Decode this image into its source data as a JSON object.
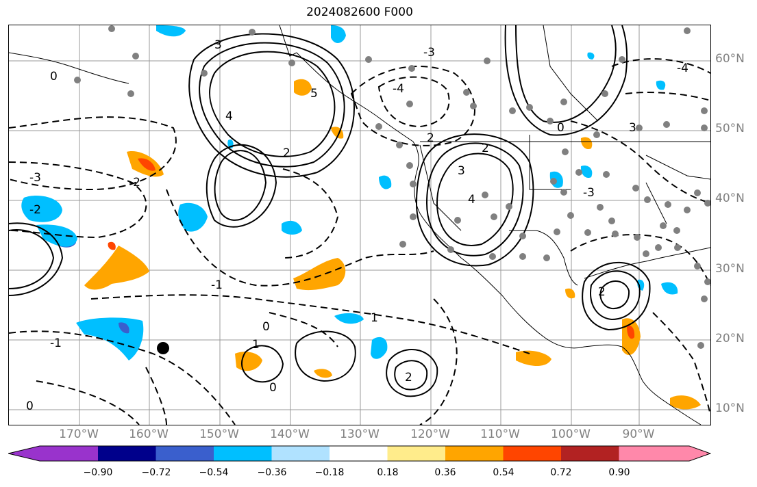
{
  "title": "2024082600 F000",
  "lat_labels": [
    "60°N",
    "50°N",
    "40°N",
    "30°N",
    "20°N",
    "10°N"
  ],
  "lon_labels": [
    "170°W",
    "160°W",
    "150°W",
    "140°W",
    "130°W",
    "120°W",
    "110°W",
    "100°W",
    "90°W"
  ],
  "colorbar": {
    "colors": [
      "#9933cc",
      "#00008b",
      "#3a5fcd",
      "#00bfff",
      "#b0e2ff",
      "#ffffff",
      "#ffec8b",
      "#ffa500",
      "#ff4500",
      "#b22222",
      "#ff88aa"
    ],
    "tick_labels": [
      "−0.90",
      "−0.72",
      "−0.54",
      "−0.36",
      "−0.18",
      "0.18",
      "0.36",
      "0.54",
      "0.72",
      "0.90"
    ]
  },
  "contour_labels": [
    "3",
    "2",
    "1",
    "0",
    "4",
    "5",
    "-3",
    "-2",
    "-1",
    "-4"
  ]
}
